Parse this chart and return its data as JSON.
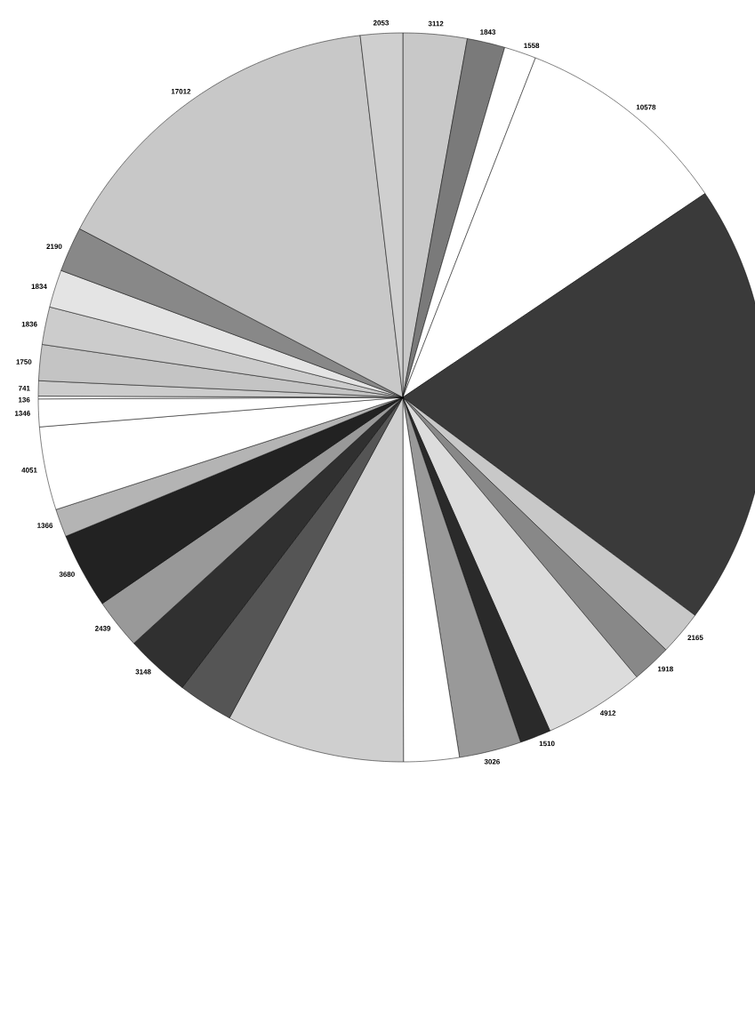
{
  "chart_data": {
    "type": "pie",
    "categories": [
      null,
      null,
      null,
      null,
      null,
      null,
      null,
      null,
      null,
      null,
      null,
      null,
      null,
      null,
      null,
      null,
      null,
      null,
      null,
      null,
      null,
      null,
      null,
      null,
      null,
      null,
      null
    ],
    "values": [
      3112,
      1843,
      1558,
      10578,
      21600,
      2165,
      1918,
      4912,
      1510,
      3026,
      2700,
      8700,
      2700,
      3148,
      2439,
      3680,
      1366,
      4051,
      1346,
      136,
      741,
      1750,
      1836,
      1834,
      2190,
      17012,
      2053
    ],
    "value_labels": [
      "3112",
      "1843",
      "1558",
      "10578",
      null,
      "2165",
      "1918",
      "4912",
      "1510",
      "3026",
      null,
      null,
      null,
      "3148",
      "2439",
      "3680",
      "1366",
      "4051",
      "1346",
      "136",
      "741",
      "1750",
      "1836",
      "1834",
      "2190",
      "17012",
      "2053"
    ],
    "colors": [
      "#c8c8c8",
      "#7a7a7a",
      "#ffffff",
      "#ffffff",
      "#3a3a3a",
      "#c8c8c8",
      "#888888",
      "#dcdcdc",
      "#2a2a2a",
      "#999999",
      "#ffffff",
      "#cfcfcf",
      "#555555",
      "#303030",
      "#999999",
      "#222222",
      "#b4b4b4",
      "#ffffff",
      "#ffffff",
      "#ffffff",
      "#cccccc",
      "#c4c4c4",
      "#cccccc",
      "#e4e4e4",
      "#888888",
      "#c8c8c8",
      "#cfcfcf"
    ]
  }
}
